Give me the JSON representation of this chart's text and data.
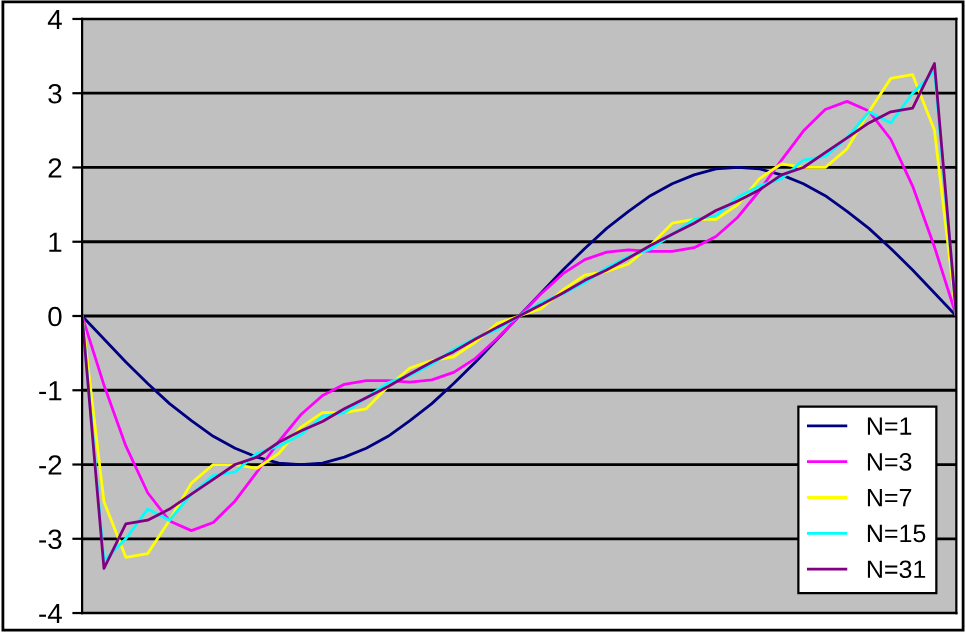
{
  "chart_data": {
    "type": "line",
    "categories": [
      null,
      null,
      null,
      null,
      null,
      null,
      null,
      null,
      null,
      null,
      null,
      null,
      null,
      null,
      null,
      null,
      null,
      null,
      null,
      null,
      null,
      null,
      null,
      null,
      null,
      null,
      null,
      null,
      null,
      null,
      null,
      null,
      null,
      null,
      null,
      null,
      null,
      null,
      null,
      null,
      null
    ],
    "series": [
      {
        "name": "N=1",
        "color": "#000080",
        "values": [
          0,
          -0.31,
          -0.62,
          -0.91,
          -1.18,
          -1.41,
          -1.62,
          -1.78,
          -1.9,
          -1.98,
          -2,
          -1.98,
          -1.9,
          -1.78,
          -1.62,
          -1.41,
          -1.18,
          -0.91,
          -0.62,
          -0.31,
          0,
          0.31,
          0.62,
          0.91,
          1.18,
          1.41,
          1.62,
          1.78,
          1.9,
          1.98,
          2,
          1.98,
          1.9,
          1.78,
          1.62,
          1.41,
          1.18,
          0.91,
          0.62,
          0.31,
          0
        ]
      },
      {
        "name": "N=3",
        "color": "#ff00ff",
        "values": [
          0,
          -0.93,
          -1.75,
          -2.38,
          -2.76,
          -2.89,
          -2.78,
          -2.49,
          -2.1,
          -1.69,
          -1.33,
          -1.07,
          -0.92,
          -0.87,
          -0.87,
          -0.89,
          -0.86,
          -0.76,
          -0.57,
          -0.3,
          0,
          0.3,
          0.57,
          0.76,
          0.86,
          0.89,
          0.87,
          0.87,
          0.92,
          1.07,
          1.33,
          1.69,
          2.1,
          2.49,
          2.78,
          2.89,
          2.76,
          2.38,
          1.75,
          0.93,
          0
        ]
      },
      {
        "name": "N=7",
        "color": "#ffff00",
        "values": [
          0,
          -2.5,
          -3.25,
          -3.2,
          -2.75,
          -2.25,
          -2.0,
          -2.0,
          -2.05,
          -1.85,
          -1.5,
          -1.3,
          -1.3,
          -1.25,
          -0.95,
          -0.7,
          -0.6,
          -0.55,
          -0.35,
          -0.1,
          0,
          0.1,
          0.35,
          0.55,
          0.6,
          0.7,
          0.95,
          1.25,
          1.3,
          1.3,
          1.5,
          1.85,
          2.05,
          2.0,
          2.0,
          2.25,
          2.75,
          3.2,
          3.25,
          2.5,
          0
        ]
      },
      {
        "name": "N=15",
        "color": "#00ffff",
        "values": [
          0,
          -3.3,
          -3.0,
          -2.6,
          -2.75,
          -2.4,
          -2.15,
          -2.1,
          -1.85,
          -1.75,
          -1.6,
          -1.35,
          -1.3,
          -1.1,
          -0.9,
          -0.8,
          -0.65,
          -0.45,
          -0.3,
          -0.18,
          0,
          0.18,
          0.3,
          0.45,
          0.65,
          0.8,
          0.9,
          1.1,
          1.3,
          1.35,
          1.6,
          1.75,
          1.85,
          2.1,
          2.15,
          2.4,
          2.75,
          2.6,
          3.0,
          3.3,
          0
        ]
      },
      {
        "name": "N=31",
        "color": "#800080",
        "values": [
          0,
          -3.4,
          -2.8,
          -2.75,
          -2.6,
          -2.4,
          -2.2,
          -2.0,
          -1.9,
          -1.7,
          -1.55,
          -1.42,
          -1.25,
          -1.1,
          -0.95,
          -0.78,
          -0.62,
          -0.48,
          -0.31,
          -0.15,
          0,
          0.15,
          0.31,
          0.48,
          0.62,
          0.78,
          0.95,
          1.1,
          1.25,
          1.42,
          1.55,
          1.7,
          1.9,
          2.0,
          2.2,
          2.4,
          2.6,
          2.75,
          2.8,
          3.4,
          0
        ]
      }
    ],
    "ylim": [
      -4,
      4
    ],
    "yticks": [
      -4,
      -3,
      -2,
      -1,
      0,
      1,
      2,
      3,
      4
    ],
    "grid": "y",
    "legend": "bottom right",
    "tick_labels": "y",
    "marker": "none",
    "line_style": "solid"
  }
}
